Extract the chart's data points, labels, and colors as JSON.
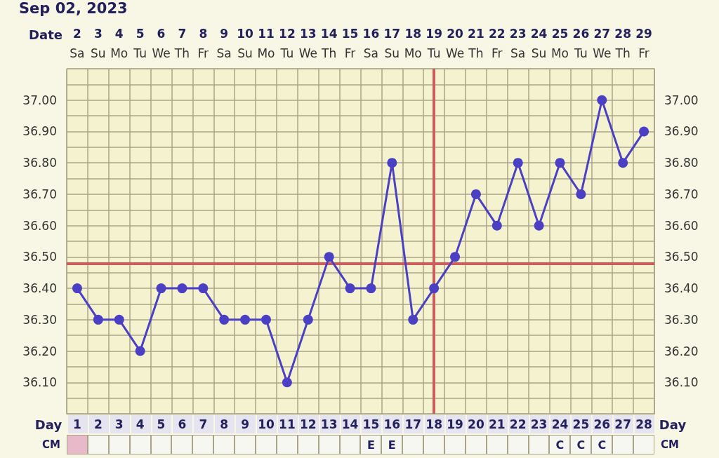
{
  "chart_data": {
    "type": "line",
    "title": "Sep 02, 2023",
    "xlabel": "Day",
    "x2label": "Date",
    "x": [
      1,
      2,
      3,
      4,
      5,
      6,
      7,
      8,
      9,
      10,
      11,
      12,
      13,
      14,
      15,
      16,
      17,
      18,
      19,
      20,
      21,
      22,
      23,
      24,
      25,
      26,
      27,
      28
    ],
    "xlim": [
      0.5,
      28.5
    ],
    "xticks": [
      1,
      2,
      3,
      4,
      5,
      6,
      7,
      8,
      9,
      10,
      11,
      12,
      13,
      14,
      15,
      16,
      17,
      18,
      19,
      20,
      21,
      22,
      23,
      24,
      25,
      26,
      27,
      28
    ],
    "x2lim": [
      1.5,
      29.5
    ],
    "x2ticks": [
      2,
      3,
      4,
      5,
      6,
      7,
      8,
      9,
      10,
      11,
      12,
      13,
      14,
      15,
      16,
      17,
      18,
      19,
      20,
      21,
      22,
      23,
      24,
      25,
      26,
      27,
      28,
      29
    ],
    "series": [
      {
        "color": "#4b3fc4",
        "values": [
          36.4,
          36.3,
          36.3,
          36.2,
          36.4,
          36.4,
          36.4,
          36.3,
          36.3,
          36.3,
          36.1,
          36.3,
          36.5,
          36.4,
          36.4,
          36.8,
          36.3,
          36.4,
          36.5,
          36.7,
          36.6,
          36.8,
          36.6,
          36.8,
          36.7,
          37.0,
          36.8,
          36.9
        ]
      }
    ],
    "ylim": [
      36.0,
      37.1
    ],
    "yticks": [
      {
        "value": 36.1,
        "label": "36.10"
      },
      {
        "value": 36.2,
        "label": "36.20"
      },
      {
        "value": 36.3,
        "label": "36.30"
      },
      {
        "value": 36.4,
        "label": "36.40"
      },
      {
        "value": 36.5,
        "label": "36.50"
      },
      {
        "value": 36.6,
        "label": "36.60"
      },
      {
        "value": 36.7,
        "label": "36.70"
      },
      {
        "value": 36.8,
        "label": "36.80"
      },
      {
        "value": 36.9,
        "label": "36.90"
      },
      {
        "value": 37.0,
        "label": "37.00"
      }
    ],
    "y2lim": [
      36.0,
      37.1
    ],
    "y2ticks": [
      {
        "value": 36.1,
        "label": "36.10"
      },
      {
        "value": 36.2,
        "label": "36.20"
      },
      {
        "value": 36.3,
        "label": "36.30"
      },
      {
        "value": 36.4,
        "label": "36.40"
      },
      {
        "value": 36.5,
        "label": "36.50"
      },
      {
        "value": 36.6,
        "label": "36.60"
      },
      {
        "value": 36.7,
        "label": "36.70"
      },
      {
        "value": 36.8,
        "label": "36.80"
      },
      {
        "value": 36.9,
        "label": "36.90"
      },
      {
        "value": 37.0,
        "label": "37.00"
      }
    ],
    "ref_lines": [
      {
        "axis": "y",
        "value": 36.475,
        "color": "#cd5c5c"
      },
      {
        "axis": "x",
        "value": 18,
        "color": "#cd5c5c"
      }
    ],
    "annotations": [
      "CM",
      "Sa",
      "Su",
      "Mo",
      "Tu",
      "We",
      "Th",
      "Fr",
      "Sa",
      "Su",
      "Mo",
      "Tu",
      "We",
      "Th",
      "Fr",
      "Sa",
      "Su",
      "Mo",
      "Tu",
      "We",
      "Th",
      "Fr",
      "Sa",
      "Su",
      "Mo",
      "Tu",
      "We",
      "Th",
      "Fr",
      "E",
      "E",
      "C",
      "C",
      "C"
    ],
    "grid": true,
    "marker": "circle",
    "line_style": "solid"
  }
}
